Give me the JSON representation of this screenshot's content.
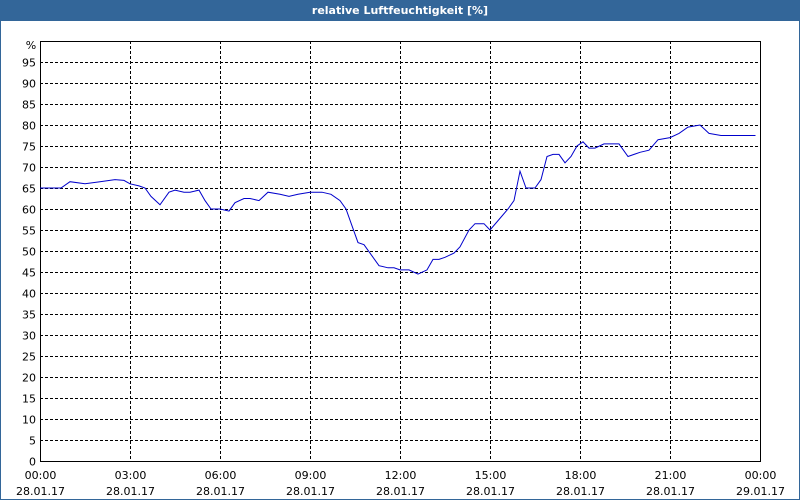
{
  "chart_data": {
    "type": "line",
    "title": "relative Luftfeuchtigkeit [%]",
    "y_unit": "%",
    "ylim": [
      0,
      100
    ],
    "y_ticks": [
      0,
      5,
      10,
      15,
      20,
      25,
      30,
      35,
      40,
      45,
      50,
      55,
      60,
      65,
      70,
      75,
      80,
      85,
      90,
      95
    ],
    "xlim_hours": [
      0,
      24
    ],
    "x_ticks": [
      {
        "hours": 0,
        "time": "00:00",
        "date": "28.01.17"
      },
      {
        "hours": 3,
        "time": "03:00",
        "date": "28.01.17"
      },
      {
        "hours": 6,
        "time": "06:00",
        "date": "28.01.17"
      },
      {
        "hours": 9,
        "time": "09:00",
        "date": "28.01.17"
      },
      {
        "hours": 12,
        "time": "12:00",
        "date": "28.01.17"
      },
      {
        "hours": 15,
        "time": "15:00",
        "date": "28.01.17"
      },
      {
        "hours": 18,
        "time": "18:00",
        "date": "28.01.17"
      },
      {
        "hours": 21,
        "time": "21:00",
        "date": "28.01.17"
      },
      {
        "hours": 24,
        "time": "00:00",
        "date": "29.01.17"
      }
    ],
    "grid": true,
    "line_color": "#0000cc",
    "series": [
      {
        "x": [
          0,
          0.3,
          0.7,
          1.0,
          1.5,
          2.0,
          2.5,
          2.8,
          3.0,
          3.3,
          3.5,
          3.7,
          4.0,
          4.3,
          4.5,
          4.8,
          5.0,
          5.3,
          5.5,
          5.7,
          6.0,
          6.3,
          6.5,
          6.8,
          7.0,
          7.3,
          7.6,
          8.0,
          8.3,
          8.6,
          9.0,
          9.4,
          9.7,
          10.0,
          10.2,
          10.4,
          10.6,
          10.8,
          11.0,
          11.3,
          11.6,
          11.8,
          12.0,
          12.3,
          12.6,
          12.9,
          13.1,
          13.3,
          13.5,
          13.8,
          14.0,
          14.3,
          14.5,
          14.8,
          15.0,
          15.3,
          15.6,
          15.8,
          16.0,
          16.2,
          16.5,
          16.7,
          16.9,
          17.1,
          17.3,
          17.5,
          17.7,
          17.9,
          18.1,
          18.3,
          18.5,
          18.8,
          19.0,
          19.3,
          19.6,
          20.0,
          20.3,
          20.6,
          21.0,
          21.3,
          21.6,
          22.0,
          22.3,
          22.7,
          23.0,
          23.3,
          23.6,
          23.85
        ],
        "y": [
          65,
          65,
          65,
          66.5,
          66,
          66.5,
          67,
          66.8,
          66,
          65.5,
          65,
          63,
          61,
          64,
          64.5,
          64,
          64,
          64.5,
          62,
          60,
          60,
          59.5,
          61.5,
          62.5,
          62.5,
          62,
          64,
          63.5,
          63,
          63.5,
          64,
          64,
          63.5,
          62,
          60,
          56,
          52,
          51.5,
          49.5,
          46.5,
          46,
          46,
          45.5,
          45.5,
          44.5,
          45.5,
          48,
          48,
          48.5,
          49.5,
          51,
          55,
          56.5,
          56.5,
          55,
          57.5,
          60,
          62,
          69,
          65,
          65,
          67,
          72.5,
          73,
          73,
          71,
          72.5,
          75,
          76,
          74.5,
          74.5,
          75.5,
          75.5,
          75.5,
          72.5,
          73.5,
          74,
          76.5,
          77,
          78,
          79.5,
          80,
          78,
          77.5,
          77.5,
          77.5,
          77.5,
          77.5
        ]
      }
    ]
  }
}
